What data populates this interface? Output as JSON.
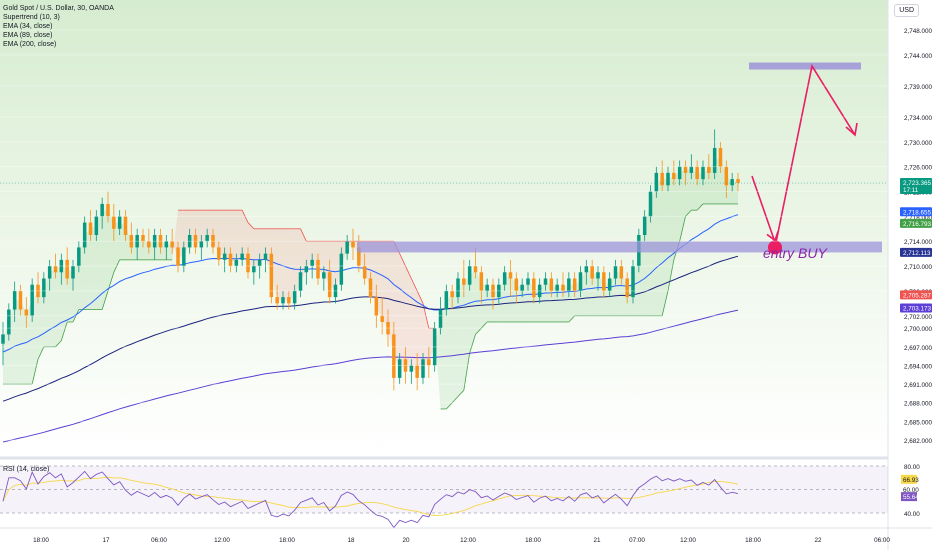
{
  "header": {
    "symbol_title": "Gold Spot / U.S. Dollar, 30, OANDA",
    "indicators": [
      "Supertrend (10, 3)",
      "EMA (34, close)",
      "EMA (89, close)",
      "EMA (200, close)"
    ],
    "currency_button": "USD"
  },
  "price_axis": {
    "ticks": [
      "2,748.000",
      "2,744.000",
      "2,739.000",
      "2,734.000",
      "2,730.000",
      "2,726.000",
      "2,722.000",
      "2,718.000",
      "2,714.000",
      "2,710.000",
      "2,706.000",
      "2,702.000",
      "2,700.000",
      "2,697.000",
      "2,694.000",
      "2,691.000",
      "2,688.000",
      "2,685.000",
      "2,682.000"
    ],
    "badges": [
      {
        "text": "2,723.365",
        "sub": "17:11",
        "color": "#089981"
      },
      {
        "text": "2,718.655",
        "color": "#2962ff"
      },
      {
        "text": "2,716.793",
        "color": "#43a047"
      },
      {
        "text": "2,712.113",
        "color": "#283593"
      },
      {
        "text": "2,705.287",
        "color": "#ef5350"
      },
      {
        "text": "2,703.173",
        "color": "#5c3fd6"
      }
    ]
  },
  "time_axis": {
    "labels": [
      "18:00",
      "17",
      "06:00",
      "12:00",
      "18:00",
      "18",
      "20",
      "12:00",
      "18:00",
      "21",
      "07:00",
      "12:00",
      "18:00",
      "22",
      "06:00"
    ]
  },
  "annotation": {
    "entry_label": "entry BUY",
    "zone_color": "#9c94d9",
    "arrow_color": "#e91e63"
  },
  "rsi": {
    "legend": "RSI (14, close)",
    "ticks": [
      "80.00",
      "40.00"
    ],
    "badges": [
      {
        "text": "66.93",
        "color": "#f7d84a",
        "textColor": "#131722"
      },
      {
        "text": "60.00",
        "color": "#ffffff",
        "textColor": "#131722"
      },
      {
        "text": "55.64",
        "color": "#7e57c2",
        "textColor": "#ffffff"
      }
    ]
  },
  "colors": {
    "up": "#089981",
    "down": "#f7931a",
    "ema34": "#2962ff",
    "ema89": "#1a237e",
    "ema200": "#5c3fd6"
  },
  "chart_data": {
    "type": "candlestick",
    "symbol": "Gold Spot / U.S. Dollar",
    "interval": "30",
    "source": "OANDA",
    "last_price": 2723.365,
    "candles": [
      [
        2697.5,
        2701,
        2694,
        2699
      ],
      [
        2699,
        2704,
        2698,
        2703
      ],
      [
        2703,
        2707.5,
        2701,
        2706
      ],
      [
        2706,
        2707,
        2702,
        2703
      ],
      [
        2703,
        2705,
        2700,
        2702
      ],
      [
        2702,
        2708,
        2701,
        2707
      ],
      [
        2707,
        2709,
        2704,
        2705
      ],
      [
        2705,
        2709,
        2704,
        2708
      ],
      [
        2708,
        2711,
        2706,
        2710
      ],
      [
        2710,
        2712,
        2708,
        2709
      ],
      [
        2709,
        2712,
        2707,
        2711
      ],
      [
        2711,
        2713,
        2707,
        2708
      ],
      [
        2708,
        2711,
        2706,
        2710
      ],
      [
        2710,
        2714,
        2709,
        2713
      ],
      [
        2713,
        2718,
        2712,
        2717
      ],
      [
        2717,
        2719,
        2714,
        2715
      ],
      [
        2715,
        2719,
        2714,
        2718
      ],
      [
        2718,
        2721,
        2716,
        2720
      ],
      [
        2720,
        2722,
        2717,
        2718
      ],
      [
        2718,
        2720,
        2714,
        2716
      ],
      [
        2716,
        2719,
        2715,
        2718
      ],
      [
        2718,
        2719,
        2714,
        2715
      ],
      [
        2715,
        2717,
        2712,
        2713
      ],
      [
        2713,
        2716,
        2711,
        2715
      ],
      [
        2715,
        2716,
        2713,
        2714
      ],
      [
        2714,
        2716,
        2712,
        2713
      ],
      [
        2713,
        2716,
        2711,
        2715
      ],
      [
        2715,
        2716,
        2712,
        2713
      ],
      [
        2713,
        2715,
        2711,
        2714
      ],
      [
        2714,
        2716,
        2712,
        2713
      ],
      [
        2713,
        2714,
        2709,
        2710
      ],
      [
        2710,
        2714,
        2709,
        2713
      ],
      [
        2713,
        2716,
        2712,
        2715
      ],
      [
        2715,
        2716,
        2712,
        2713
      ],
      [
        2713,
        2715,
        2711,
        2714
      ],
      [
        2714,
        2716,
        2713,
        2715
      ],
      [
        2715,
        2716,
        2712,
        2713
      ],
      [
        2713,
        2714,
        2710,
        2711
      ],
      [
        2711,
        2713,
        2709,
        2712
      ],
      [
        2712,
        2713,
        2709,
        2710
      ],
      [
        2710,
        2712,
        2709,
        2711
      ],
      [
        2711,
        2713,
        2710,
        2712
      ],
      [
        2712,
        2713,
        2708,
        2709
      ],
      [
        2709,
        2711,
        2707,
        2710
      ],
      [
        2710,
        2712,
        2708,
        2711
      ],
      [
        2711,
        2713,
        2709,
        2712
      ],
      [
        2712,
        2713,
        2704,
        2705
      ],
      [
        2705,
        2707,
        2703,
        2704
      ],
      [
        2704,
        2706,
        2703,
        2705
      ],
      [
        2705,
        2706,
        2703,
        2704
      ],
      [
        2704,
        2707,
        2703,
        2706
      ],
      [
        2706,
        2710,
        2705,
        2709
      ],
      [
        2709,
        2711,
        2707,
        2710
      ],
      [
        2710,
        2712,
        2708,
        2711
      ],
      [
        2711,
        2712,
        2707,
        2708
      ],
      [
        2708,
        2710,
        2706,
        2709
      ],
      [
        2709,
        2711,
        2704,
        2705
      ],
      [
        2705,
        2708,
        2704,
        2707
      ],
      [
        2707,
        2713,
        2706,
        2712
      ],
      [
        2712,
        2715,
        2711,
        2714
      ],
      [
        2714,
        2716,
        2711,
        2713
      ],
      [
        2713,
        2715,
        2709,
        2710
      ],
      [
        2710,
        2712,
        2707,
        2708
      ],
      [
        2708,
        2709,
        2704,
        2705
      ],
      [
        2705,
        2707,
        2700,
        2702
      ],
      [
        2702,
        2705,
        2699,
        2701
      ],
      [
        2701,
        2703,
        2697,
        2699
      ],
      [
        2699,
        2701,
        2690,
        2692
      ],
      [
        2692,
        2696,
        2691,
        2695
      ],
      [
        2695,
        2697,
        2691,
        2693
      ],
      [
        2693,
        2695,
        2691,
        2694
      ],
      [
        2694,
        2696,
        2690,
        2692
      ],
      [
        2692,
        2696,
        2691,
        2695
      ],
      [
        2695,
        2697,
        2692,
        2694
      ],
      [
        2694,
        2701,
        2693,
        2700
      ],
      [
        2700,
        2705,
        2699,
        2703
      ],
      [
        2703,
        2707,
        2702,
        2706
      ],
      [
        2706,
        2707,
        2703,
        2705
      ],
      [
        2705,
        2709,
        2704,
        2708
      ],
      [
        2708,
        2711,
        2705,
        2707
      ],
      [
        2707,
        2711,
        2706,
        2710
      ],
      [
        2710,
        2713,
        2708,
        2709
      ],
      [
        2709,
        2710,
        2704,
        2706
      ],
      [
        2706,
        2708,
        2705,
        2707
      ],
      [
        2707,
        2708,
        2703,
        2705
      ],
      [
        2705,
        2708,
        2704,
        2707
      ],
      [
        2707,
        2710,
        2706,
        2709
      ],
      [
        2709,
        2711,
        2705,
        2708
      ],
      [
        2708,
        2709,
        2704,
        2706
      ],
      [
        2706,
        2708,
        2705,
        2707
      ],
      [
        2707,
        2709,
        2706,
        2708
      ],
      [
        2708,
        2709,
        2704,
        2705
      ],
      [
        2705,
        2708,
        2704,
        2707
      ],
      [
        2707,
        2709,
        2706,
        2708
      ],
      [
        2708,
        2709,
        2705,
        2706
      ],
      [
        2706,
        2708,
        2705,
        2707
      ],
      [
        2707,
        2709,
        2705,
        2706
      ],
      [
        2706,
        2709,
        2705,
        2708
      ],
      [
        2708,
        2709,
        2705,
        2706
      ],
      [
        2706,
        2710,
        2705,
        2709
      ],
      [
        2709,
        2711,
        2707,
        2710
      ],
      [
        2710,
        2711,
        2707,
        2708
      ],
      [
        2708,
        2710,
        2706,
        2709
      ],
      [
        2709,
        2710,
        2705,
        2706
      ],
      [
        2706,
        2709,
        2705,
        2708
      ],
      [
        2708,
        2711,
        2707,
        2710
      ],
      [
        2710,
        2711,
        2707,
        2708
      ],
      [
        2708,
        2709,
        2704,
        2705
      ],
      [
        2705,
        2711,
        2704,
        2710
      ],
      [
        2710,
        2716,
        2709,
        2715
      ],
      [
        2715,
        2719,
        2714,
        2718
      ],
      [
        2718,
        2723,
        2717,
        2722
      ],
      [
        2722,
        2726,
        2721,
        2725
      ],
      [
        2725,
        2727,
        2722,
        2723
      ],
      [
        2723,
        2726,
        2722,
        2725
      ],
      [
        2725,
        2727,
        2723,
        2724
      ],
      [
        2724,
        2727,
        2723,
        2726
      ],
      [
        2726,
        2727,
        2723,
        2725
      ],
      [
        2725,
        2728,
        2724,
        2726
      ],
      [
        2726,
        2727,
        2723,
        2724
      ],
      [
        2724,
        2727,
        2723,
        2726
      ],
      [
        2726,
        2728,
        2724,
        2725
      ],
      [
        2725,
        2732,
        2724,
        2729
      ],
      [
        2729,
        2730,
        2725,
        2726
      ],
      [
        2726,
        2727,
        2721,
        2723
      ],
      [
        2723,
        2725,
        2722,
        2724
      ],
      [
        2724,
        2725,
        2722,
        2723.4
      ]
    ],
    "indicators": [
      "Supertrend (10, 3)",
      "EMA (34, close)",
      "EMA (89, close)",
      "EMA (200, close)",
      "RSI (14, close)"
    ],
    "latest_values": {
      "EMA34": 2718.655,
      "Supertrend": 2716.793,
      "EMA89": 2712.113,
      "EMA200": 2703.173,
      "RSI": 55.64,
      "RSI_MA": 66.93
    },
    "zones": [
      {
        "name": "entry zone",
        "price": 2713.0
      },
      {
        "name": "target zone",
        "price": 2742.2
      }
    ],
    "projection": "price dips to ~2,713 entry zone, rallies to ~2,742 zone, then pulls back",
    "y_axis": {
      "min": 2680,
      "max": 2750
    },
    "rsi_levels": [
      80,
      60,
      40
    ]
  }
}
